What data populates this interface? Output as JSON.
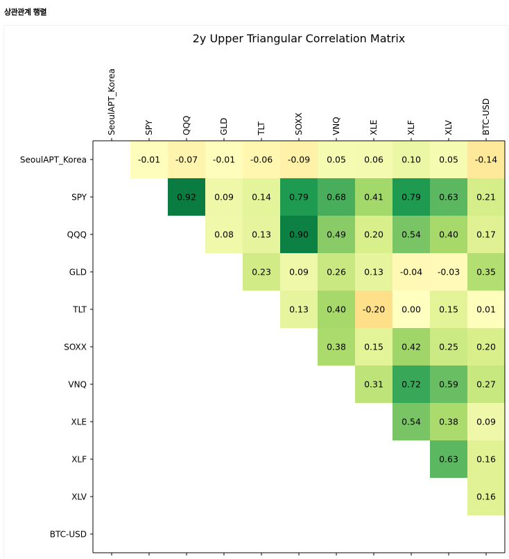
{
  "page": {
    "heading": "상관관계 행렬"
  },
  "chart_data": {
    "type": "heatmap",
    "title": "2y Upper Triangular Correlation Matrix",
    "labels": [
      "SeoulAPT_Korea",
      "SPY",
      "QQQ",
      "GLD",
      "TLT",
      "SOXX",
      "VNQ",
      "XLE",
      "XLF",
      "XLV",
      "BTC-USD"
    ],
    "value_format": "2 decimals",
    "colormap": "RdYlGn",
    "vmin": -1,
    "vmax": 1,
    "cells": [
      {
        "row": "SeoulAPT_Korea",
        "col": "SPY",
        "value": -0.01
      },
      {
        "row": "SeoulAPT_Korea",
        "col": "QQQ",
        "value": -0.07
      },
      {
        "row": "SeoulAPT_Korea",
        "col": "GLD",
        "value": -0.01
      },
      {
        "row": "SeoulAPT_Korea",
        "col": "TLT",
        "value": -0.06
      },
      {
        "row": "SeoulAPT_Korea",
        "col": "SOXX",
        "value": -0.09
      },
      {
        "row": "SeoulAPT_Korea",
        "col": "VNQ",
        "value": 0.05
      },
      {
        "row": "SeoulAPT_Korea",
        "col": "XLE",
        "value": 0.06
      },
      {
        "row": "SeoulAPT_Korea",
        "col": "XLF",
        "value": 0.1
      },
      {
        "row": "SeoulAPT_Korea",
        "col": "XLV",
        "value": 0.05
      },
      {
        "row": "SeoulAPT_Korea",
        "col": "BTC-USD",
        "value": -0.14
      },
      {
        "row": "SPY",
        "col": "QQQ",
        "value": 0.92
      },
      {
        "row": "SPY",
        "col": "GLD",
        "value": 0.09
      },
      {
        "row": "SPY",
        "col": "TLT",
        "value": 0.14
      },
      {
        "row": "SPY",
        "col": "SOXX",
        "value": 0.79
      },
      {
        "row": "SPY",
        "col": "VNQ",
        "value": 0.68
      },
      {
        "row": "SPY",
        "col": "XLE",
        "value": 0.41
      },
      {
        "row": "SPY",
        "col": "XLF",
        "value": 0.79
      },
      {
        "row": "SPY",
        "col": "XLV",
        "value": 0.63
      },
      {
        "row": "SPY",
        "col": "BTC-USD",
        "value": 0.21
      },
      {
        "row": "QQQ",
        "col": "GLD",
        "value": 0.08
      },
      {
        "row": "QQQ",
        "col": "TLT",
        "value": 0.13
      },
      {
        "row": "QQQ",
        "col": "SOXX",
        "value": 0.9
      },
      {
        "row": "QQQ",
        "col": "VNQ",
        "value": 0.49
      },
      {
        "row": "QQQ",
        "col": "XLE",
        "value": 0.2
      },
      {
        "row": "QQQ",
        "col": "XLF",
        "value": 0.54
      },
      {
        "row": "QQQ",
        "col": "XLV",
        "value": 0.4
      },
      {
        "row": "QQQ",
        "col": "BTC-USD",
        "value": 0.17
      },
      {
        "row": "GLD",
        "col": "TLT",
        "value": 0.23
      },
      {
        "row": "GLD",
        "col": "SOXX",
        "value": 0.09
      },
      {
        "row": "GLD",
        "col": "VNQ",
        "value": 0.26
      },
      {
        "row": "GLD",
        "col": "XLE",
        "value": 0.13
      },
      {
        "row": "GLD",
        "col": "XLF",
        "value": -0.04
      },
      {
        "row": "GLD",
        "col": "XLV",
        "value": -0.03
      },
      {
        "row": "GLD",
        "col": "BTC-USD",
        "value": 0.35
      },
      {
        "row": "TLT",
        "col": "SOXX",
        "value": 0.13
      },
      {
        "row": "TLT",
        "col": "VNQ",
        "value": 0.4
      },
      {
        "row": "TLT",
        "col": "XLE",
        "value": -0.2
      },
      {
        "row": "TLT",
        "col": "XLF",
        "value": 0.0
      },
      {
        "row": "TLT",
        "col": "XLV",
        "value": 0.15
      },
      {
        "row": "TLT",
        "col": "BTC-USD",
        "value": 0.01
      },
      {
        "row": "SOXX",
        "col": "VNQ",
        "value": 0.38
      },
      {
        "row": "SOXX",
        "col": "XLE",
        "value": 0.15
      },
      {
        "row": "SOXX",
        "col": "XLF",
        "value": 0.42
      },
      {
        "row": "SOXX",
        "col": "XLV",
        "value": 0.25
      },
      {
        "row": "SOXX",
        "col": "BTC-USD",
        "value": 0.2
      },
      {
        "row": "VNQ",
        "col": "XLE",
        "value": 0.31
      },
      {
        "row": "VNQ",
        "col": "XLF",
        "value": 0.72
      },
      {
        "row": "VNQ",
        "col": "XLV",
        "value": 0.59
      },
      {
        "row": "VNQ",
        "col": "BTC-USD",
        "value": 0.27
      },
      {
        "row": "XLE",
        "col": "XLF",
        "value": 0.54
      },
      {
        "row": "XLE",
        "col": "XLV",
        "value": 0.38
      },
      {
        "row": "XLE",
        "col": "BTC-USD",
        "value": 0.09
      },
      {
        "row": "XLF",
        "col": "XLV",
        "value": 0.63
      },
      {
        "row": "XLF",
        "col": "BTC-USD",
        "value": 0.16
      },
      {
        "row": "XLV",
        "col": "BTC-USD",
        "value": 0.16
      }
    ]
  }
}
